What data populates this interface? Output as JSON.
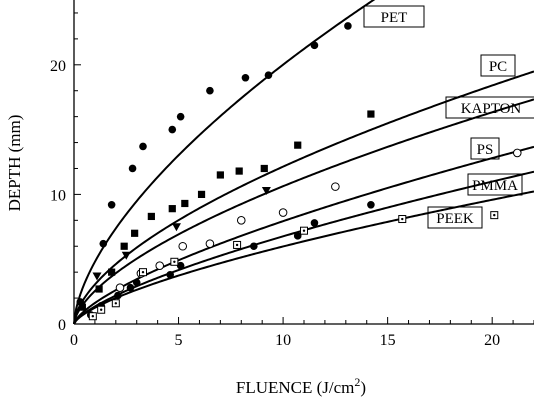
{
  "chart_data": {
    "type": "scatter",
    "title": "",
    "xlabel": "FLUENCE (J/cm",
    "xlabel_sup": "2",
    "xlabel_close": ")",
    "ylabel": "DEPTH (mm)",
    "xlim": [
      0,
      22
    ],
    "ylim": [
      0,
      25
    ],
    "xticks": [
      0,
      5,
      10,
      15,
      20
    ],
    "yticks": [
      0,
      10,
      20
    ],
    "xtick_labels": [
      "0",
      "5",
      "10",
      "15",
      "20"
    ],
    "ytick_labels": [
      "0",
      "10",
      "20"
    ],
    "grid": false,
    "series": [
      {
        "name": "PET",
        "marker": "filled-circle",
        "fit": {
          "a": 4.8,
          "b": 0.62
        },
        "x": [
          0.3,
          1.4,
          1.8,
          2.8,
          3.3,
          4.7,
          5.1,
          6.5,
          8.2,
          9.3,
          11.5,
          13.1
        ],
        "y": [
          1.7,
          6.2,
          9.2,
          12.0,
          13.7,
          15.0,
          16.0,
          18.0,
          19.0,
          19.2,
          21.5,
          23.0
        ]
      },
      {
        "name": "PC",
        "marker": "filled-square",
        "fit": {
          "a": 3.05,
          "b": 0.6
        },
        "x": [
          0.4,
          1.2,
          1.8,
          2.4,
          2.9,
          3.7,
          4.7,
          5.3,
          6.1,
          7.0,
          7.9,
          9.1,
          10.7,
          14.2
        ],
        "y": [
          1.3,
          2.7,
          4.0,
          6.0,
          7.0,
          8.3,
          8.9,
          9.3,
          10.0,
          11.5,
          11.8,
          12.0,
          13.8,
          16.2
        ]
      },
      {
        "name": "KAPTON",
        "marker": "filled-triangle-down",
        "fit": {
          "a": 2.55,
          "b": 0.62
        },
        "x": [
          1.1,
          2.5,
          4.9,
          9.2
        ],
        "y": [
          3.7,
          5.3,
          7.5,
          10.3
        ]
      },
      {
        "name": "PS",
        "marker": "open-circle",
        "fit": {
          "a": 1.62,
          "b": 0.69
        },
        "x": [
          2.2,
          3.2,
          4.1,
          5.2,
          6.5,
          8.0,
          10.0,
          12.5,
          21.2
        ],
        "y": [
          2.8,
          3.9,
          4.5,
          6.0,
          6.2,
          8.0,
          8.6,
          10.6,
          13.2
        ]
      },
      {
        "name": "PMMA",
        "marker": "filled-circle",
        "fit": {
          "a": 1.35,
          "b": 0.7
        },
        "x": [
          0.8,
          1.3,
          2.1,
          2.7,
          3.0,
          4.6,
          5.1,
          8.6,
          10.7,
          11.5,
          14.2
        ],
        "y": [
          0.7,
          1.4,
          2.2,
          2.8,
          3.2,
          3.8,
          4.5,
          6.0,
          6.8,
          7.8,
          9.2
        ]
      },
      {
        "name": "PEEK",
        "marker": "open-square-dot",
        "fit": {
          "a": 1.25,
          "b": 0.68
        },
        "x": [
          0.9,
          1.3,
          2.0,
          3.3,
          4.8,
          7.8,
          11.0,
          15.7,
          20.1
        ],
        "y": [
          0.6,
          1.1,
          1.6,
          4.0,
          4.8,
          6.1,
          7.2,
          8.1,
          8.4
        ]
      }
    ]
  }
}
